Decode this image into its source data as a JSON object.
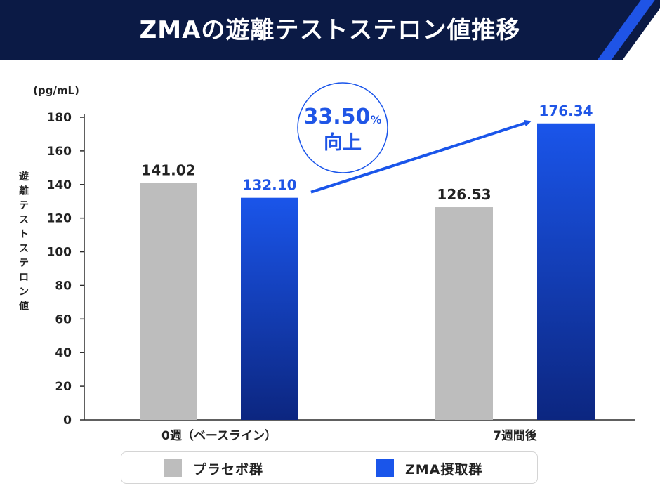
{
  "header": {
    "title": "ZMAの遊離テストステロン値推移"
  },
  "colors": {
    "header_bg": "#0b1a45",
    "placebo": "#bdbdbd",
    "zma_top": "#1a55ea",
    "zma_bottom": "#0c2680",
    "zma_label": "#1f55e6",
    "axis": "#2b2b2b",
    "text": "#222222"
  },
  "chart_data": {
    "type": "bar",
    "title": "ZMAの遊離テストステロン値推移",
    "unit": "(pg/mL)",
    "ylabel": "遊離テストステロン値",
    "ylim": [
      0,
      180
    ],
    "yticks": [
      0,
      20,
      40,
      60,
      80,
      100,
      120,
      140,
      160,
      180
    ],
    "categories": [
      "0週（ベースライン）",
      "7週間後"
    ],
    "series": [
      {
        "name": "プラセボ群",
        "values": [
          141.02,
          126.53
        ],
        "labels": [
          "141.02",
          "126.53"
        ]
      },
      {
        "name": "ZMA摂取群",
        "values": [
          132.1,
          176.34
        ],
        "labels": [
          "132.10",
          "176.34"
        ]
      }
    ],
    "annotation": {
      "value": "33.50",
      "unit": "%",
      "text": "向上"
    },
    "grid": false,
    "legend_position": "bottom"
  }
}
